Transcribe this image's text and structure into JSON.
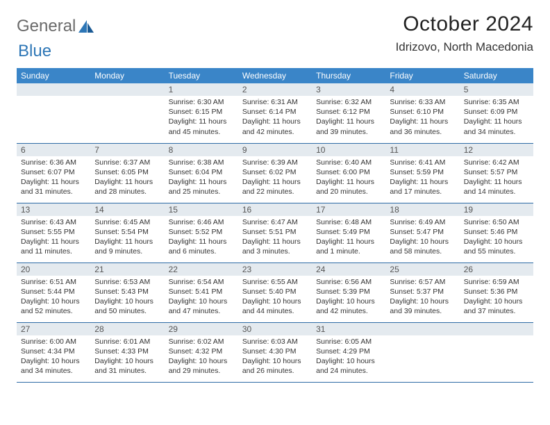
{
  "logo": {
    "text1": "General",
    "text2": "Blue"
  },
  "title": "October 2024",
  "location": "Idrizovo, North Macedonia",
  "colors": {
    "header_bg": "#3a85c8",
    "daynum_bg": "#e4eaef",
    "row_border": "#2d6aa5",
    "logo_gray": "#6a6a6a",
    "logo_blue": "#2d76b6"
  },
  "weekdays": [
    "Sunday",
    "Monday",
    "Tuesday",
    "Wednesday",
    "Thursday",
    "Friday",
    "Saturday"
  ],
  "weeks": [
    [
      null,
      null,
      {
        "n": "1",
        "sr": "Sunrise: 6:30 AM",
        "ss": "Sunset: 6:15 PM",
        "dl1": "Daylight: 11 hours",
        "dl2": "and 45 minutes."
      },
      {
        "n": "2",
        "sr": "Sunrise: 6:31 AM",
        "ss": "Sunset: 6:14 PM",
        "dl1": "Daylight: 11 hours",
        "dl2": "and 42 minutes."
      },
      {
        "n": "3",
        "sr": "Sunrise: 6:32 AM",
        "ss": "Sunset: 6:12 PM",
        "dl1": "Daylight: 11 hours",
        "dl2": "and 39 minutes."
      },
      {
        "n": "4",
        "sr": "Sunrise: 6:33 AM",
        "ss": "Sunset: 6:10 PM",
        "dl1": "Daylight: 11 hours",
        "dl2": "and 36 minutes."
      },
      {
        "n": "5",
        "sr": "Sunrise: 6:35 AM",
        "ss": "Sunset: 6:09 PM",
        "dl1": "Daylight: 11 hours",
        "dl2": "and 34 minutes."
      }
    ],
    [
      {
        "n": "6",
        "sr": "Sunrise: 6:36 AM",
        "ss": "Sunset: 6:07 PM",
        "dl1": "Daylight: 11 hours",
        "dl2": "and 31 minutes."
      },
      {
        "n": "7",
        "sr": "Sunrise: 6:37 AM",
        "ss": "Sunset: 6:05 PM",
        "dl1": "Daylight: 11 hours",
        "dl2": "and 28 minutes."
      },
      {
        "n": "8",
        "sr": "Sunrise: 6:38 AM",
        "ss": "Sunset: 6:04 PM",
        "dl1": "Daylight: 11 hours",
        "dl2": "and 25 minutes."
      },
      {
        "n": "9",
        "sr": "Sunrise: 6:39 AM",
        "ss": "Sunset: 6:02 PM",
        "dl1": "Daylight: 11 hours",
        "dl2": "and 22 minutes."
      },
      {
        "n": "10",
        "sr": "Sunrise: 6:40 AM",
        "ss": "Sunset: 6:00 PM",
        "dl1": "Daylight: 11 hours",
        "dl2": "and 20 minutes."
      },
      {
        "n": "11",
        "sr": "Sunrise: 6:41 AM",
        "ss": "Sunset: 5:59 PM",
        "dl1": "Daylight: 11 hours",
        "dl2": "and 17 minutes."
      },
      {
        "n": "12",
        "sr": "Sunrise: 6:42 AM",
        "ss": "Sunset: 5:57 PM",
        "dl1": "Daylight: 11 hours",
        "dl2": "and 14 minutes."
      }
    ],
    [
      {
        "n": "13",
        "sr": "Sunrise: 6:43 AM",
        "ss": "Sunset: 5:55 PM",
        "dl1": "Daylight: 11 hours",
        "dl2": "and 11 minutes."
      },
      {
        "n": "14",
        "sr": "Sunrise: 6:45 AM",
        "ss": "Sunset: 5:54 PM",
        "dl1": "Daylight: 11 hours",
        "dl2": "and 9 minutes."
      },
      {
        "n": "15",
        "sr": "Sunrise: 6:46 AM",
        "ss": "Sunset: 5:52 PM",
        "dl1": "Daylight: 11 hours",
        "dl2": "and 6 minutes."
      },
      {
        "n": "16",
        "sr": "Sunrise: 6:47 AM",
        "ss": "Sunset: 5:51 PM",
        "dl1": "Daylight: 11 hours",
        "dl2": "and 3 minutes."
      },
      {
        "n": "17",
        "sr": "Sunrise: 6:48 AM",
        "ss": "Sunset: 5:49 PM",
        "dl1": "Daylight: 11 hours",
        "dl2": "and 1 minute."
      },
      {
        "n": "18",
        "sr": "Sunrise: 6:49 AM",
        "ss": "Sunset: 5:47 PM",
        "dl1": "Daylight: 10 hours",
        "dl2": "and 58 minutes."
      },
      {
        "n": "19",
        "sr": "Sunrise: 6:50 AM",
        "ss": "Sunset: 5:46 PM",
        "dl1": "Daylight: 10 hours",
        "dl2": "and 55 minutes."
      }
    ],
    [
      {
        "n": "20",
        "sr": "Sunrise: 6:51 AM",
        "ss": "Sunset: 5:44 PM",
        "dl1": "Daylight: 10 hours",
        "dl2": "and 52 minutes."
      },
      {
        "n": "21",
        "sr": "Sunrise: 6:53 AM",
        "ss": "Sunset: 5:43 PM",
        "dl1": "Daylight: 10 hours",
        "dl2": "and 50 minutes."
      },
      {
        "n": "22",
        "sr": "Sunrise: 6:54 AM",
        "ss": "Sunset: 5:41 PM",
        "dl1": "Daylight: 10 hours",
        "dl2": "and 47 minutes."
      },
      {
        "n": "23",
        "sr": "Sunrise: 6:55 AM",
        "ss": "Sunset: 5:40 PM",
        "dl1": "Daylight: 10 hours",
        "dl2": "and 44 minutes."
      },
      {
        "n": "24",
        "sr": "Sunrise: 6:56 AM",
        "ss": "Sunset: 5:39 PM",
        "dl1": "Daylight: 10 hours",
        "dl2": "and 42 minutes."
      },
      {
        "n": "25",
        "sr": "Sunrise: 6:57 AM",
        "ss": "Sunset: 5:37 PM",
        "dl1": "Daylight: 10 hours",
        "dl2": "and 39 minutes."
      },
      {
        "n": "26",
        "sr": "Sunrise: 6:59 AM",
        "ss": "Sunset: 5:36 PM",
        "dl1": "Daylight: 10 hours",
        "dl2": "and 37 minutes."
      }
    ],
    [
      {
        "n": "27",
        "sr": "Sunrise: 6:00 AM",
        "ss": "Sunset: 4:34 PM",
        "dl1": "Daylight: 10 hours",
        "dl2": "and 34 minutes."
      },
      {
        "n": "28",
        "sr": "Sunrise: 6:01 AM",
        "ss": "Sunset: 4:33 PM",
        "dl1": "Daylight: 10 hours",
        "dl2": "and 31 minutes."
      },
      {
        "n": "29",
        "sr": "Sunrise: 6:02 AM",
        "ss": "Sunset: 4:32 PM",
        "dl1": "Daylight: 10 hours",
        "dl2": "and 29 minutes."
      },
      {
        "n": "30",
        "sr": "Sunrise: 6:03 AM",
        "ss": "Sunset: 4:30 PM",
        "dl1": "Daylight: 10 hours",
        "dl2": "and 26 minutes."
      },
      {
        "n": "31",
        "sr": "Sunrise: 6:05 AM",
        "ss": "Sunset: 4:29 PM",
        "dl1": "Daylight: 10 hours",
        "dl2": "and 24 minutes."
      },
      null,
      null
    ]
  ]
}
